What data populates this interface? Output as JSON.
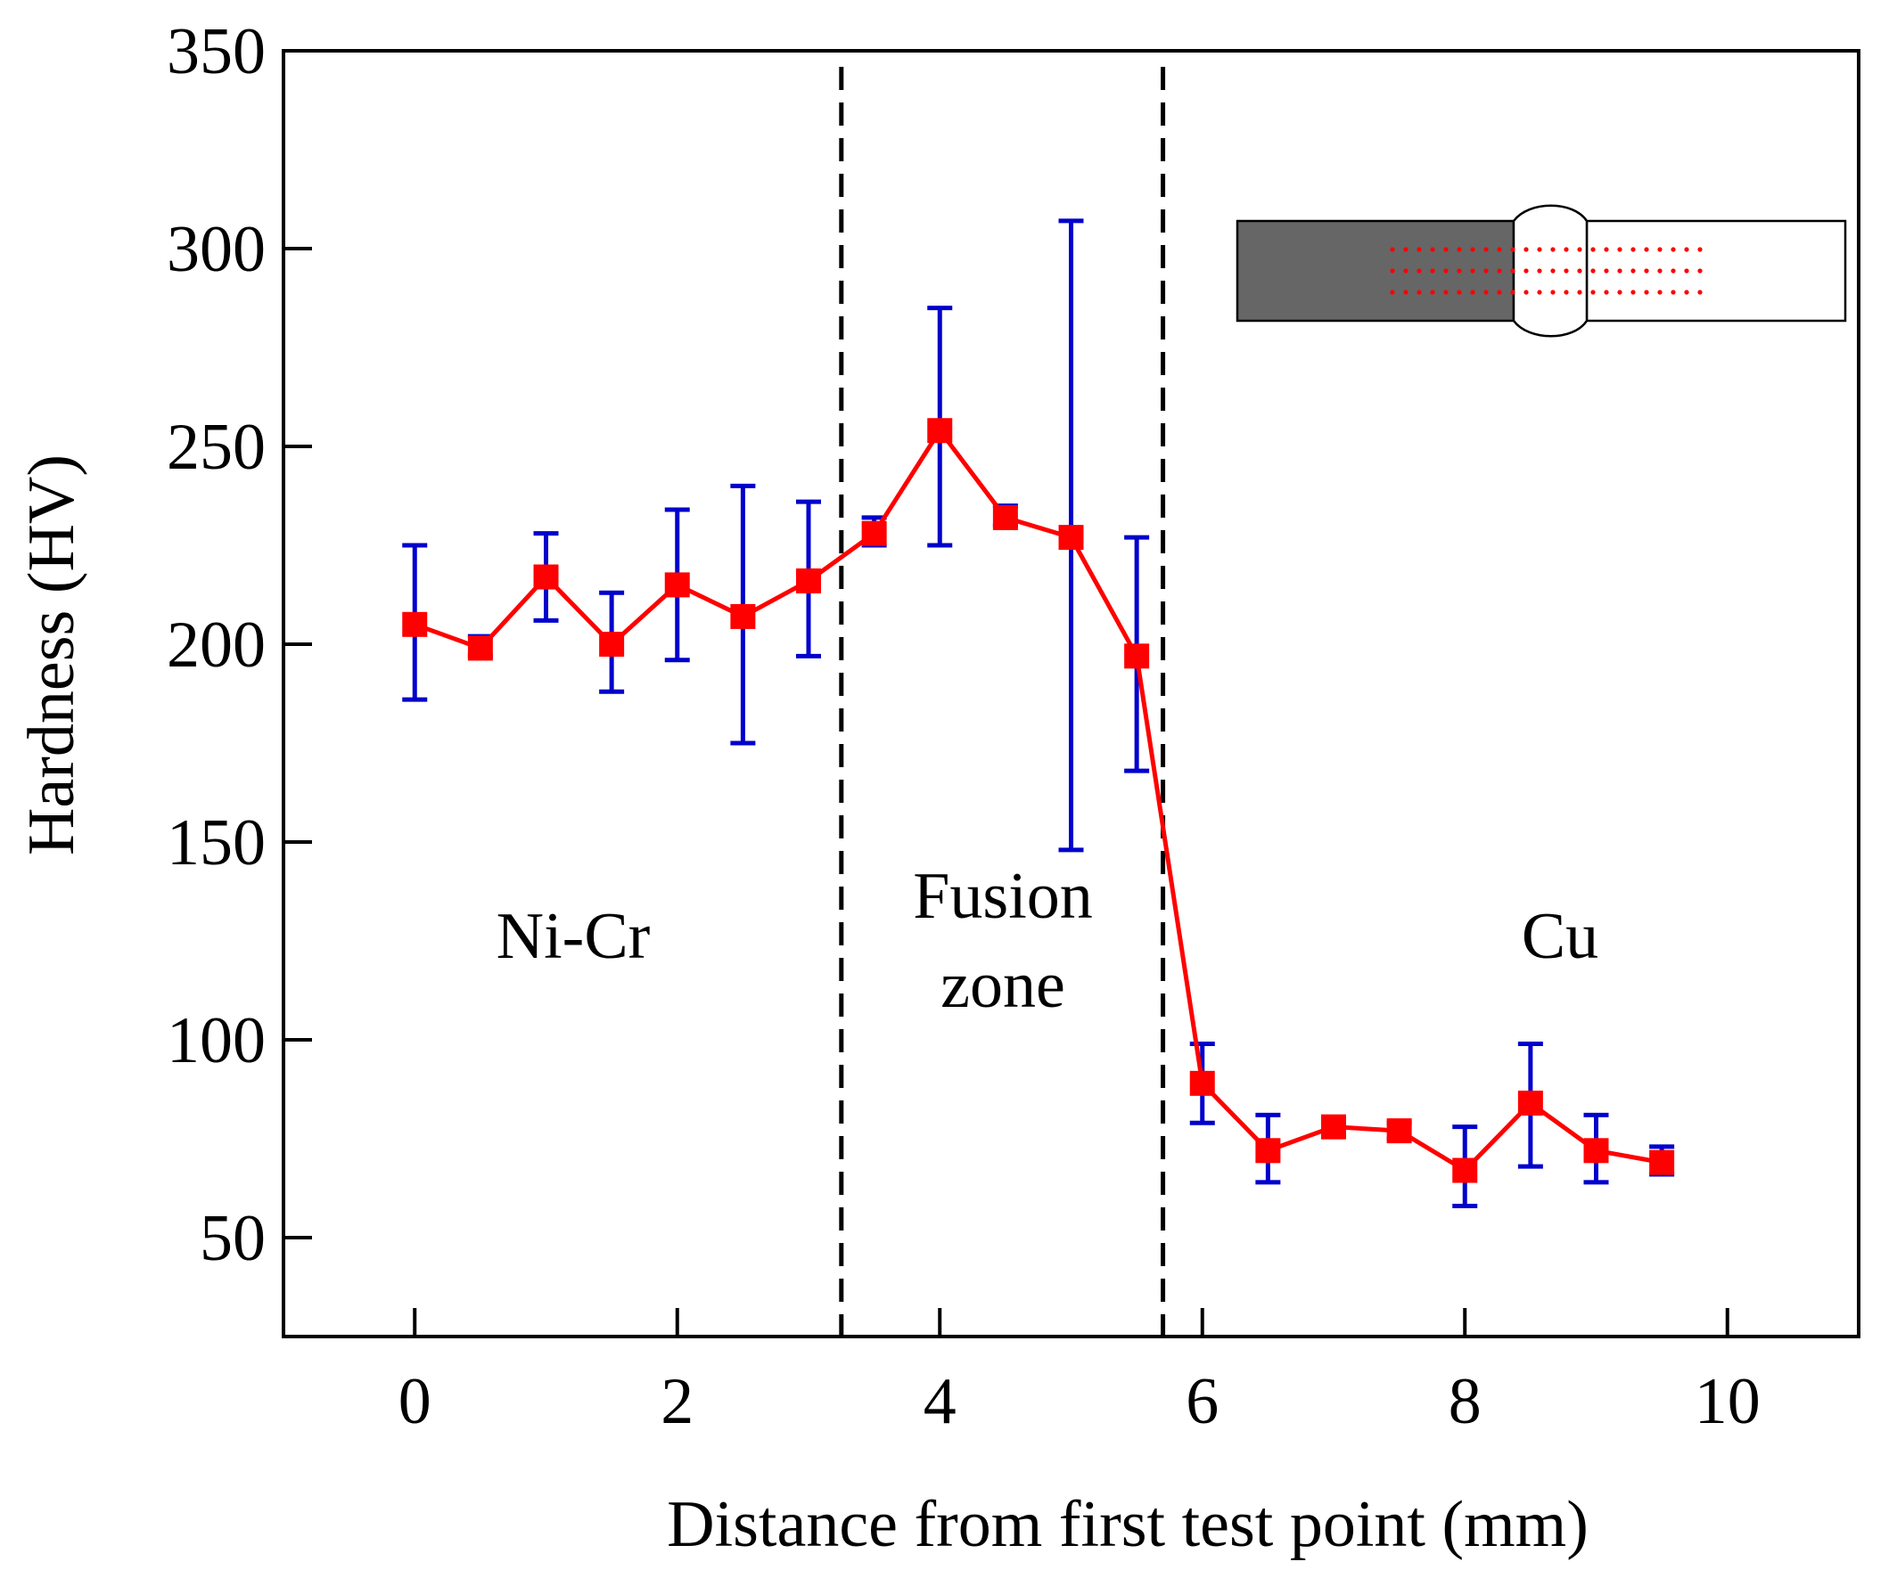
{
  "chart_data": {
    "type": "line",
    "title": "",
    "xlabel": "Distance from first test point (mm)",
    "ylabel": "Hardness (HV)",
    "xlim": [
      -1,
      11
    ],
    "ylim": [
      25,
      350
    ],
    "xticks": [
      0,
      2,
      4,
      6,
      8,
      10
    ],
    "xtick_labels": [
      "0",
      "2",
      "4",
      "6",
      "8",
      "10"
    ],
    "yticks": [
      50,
      100,
      150,
      200,
      250,
      300,
      350
    ],
    "ytick_labels": [
      "50",
      "100",
      "150",
      "200",
      "250",
      "300",
      "350"
    ],
    "grid": false,
    "legend": "none",
    "series": [
      {
        "line_color": "#ff0000",
        "marker": "square",
        "errorbar_color": "#0000cc",
        "x": [
          0,
          0.5,
          1,
          1.5,
          2,
          2.5,
          3,
          3.5,
          4,
          4.5,
          5,
          5.5,
          6,
          6.5,
          7,
          7.5,
          8,
          8.5,
          9,
          9.5
        ],
        "y": [
          205,
          199,
          217,
          200,
          215,
          207,
          216,
          228,
          254,
          232,
          227,
          197,
          89,
          72,
          78,
          77,
          67,
          84,
          72,
          69
        ],
        "err_low": [
          186,
          197,
          206,
          188,
          196,
          175,
          197,
          225,
          225,
          230,
          148,
          168,
          79,
          64,
          76,
          75,
          58,
          68,
          64,
          66
        ],
        "err_high": [
          225,
          202,
          228,
          213,
          234,
          240,
          236,
          232,
          285,
          235,
          307,
          227,
          99,
          81,
          80,
          79,
          78,
          99,
          81,
          73
        ]
      }
    ],
    "boundaries": [
      3.25,
      5.7
    ],
    "annotations": {
      "nicr": "Ni-Cr",
      "fusion_line1": "Fusion",
      "fusion_line2": "zone",
      "cu": "Cu"
    },
    "inset": {
      "left_color": "#666666",
      "right_color": "#ffffff",
      "dot_color": "#ff0000",
      "dot_rows": 3
    }
  }
}
